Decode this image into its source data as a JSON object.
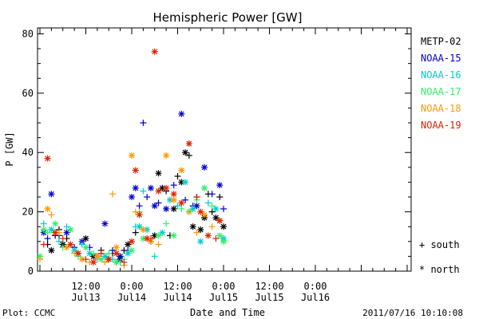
{
  "chart_data": {
    "type": "scatter",
    "title": "Hemispheric Power [GW]",
    "xlabel": "Date and Time",
    "ylabel": "P [GW]",
    "ylim": [
      0,
      82
    ],
    "xlim_hours": [
      0,
      96
    ],
    "x_ticks": [
      {
        "h": 12,
        "line1": "12:00",
        "line2": "Jul13"
      },
      {
        "h": 24,
        "line1": "0:00",
        "line2": "Jul14"
      },
      {
        "h": 36,
        "line1": "12:00",
        "line2": "Jul14"
      },
      {
        "h": 48,
        "line1": "0:00",
        "line2": "Jul15"
      },
      {
        "h": 60,
        "line1": "12:00",
        "line2": "Jul15"
      },
      {
        "h": 72,
        "line1": "0:00",
        "line2": "Jul16"
      }
    ],
    "y_ticks": [
      0,
      20,
      40,
      60,
      80
    ],
    "legend_placement": "right",
    "marker_legend": [
      {
        "symbol": "+",
        "label": "south"
      },
      {
        "symbol": "*",
        "label": "north"
      }
    ],
    "series": [
      {
        "name": "METP-02",
        "color": "#000000",
        "points": [
          [
            2,
            9,
            "+"
          ],
          [
            3,
            7,
            "*"
          ],
          [
            4,
            12,
            "+"
          ],
          [
            5,
            14,
            "+"
          ],
          [
            6,
            9,
            "*"
          ],
          [
            7,
            11,
            "+"
          ],
          [
            10,
            6,
            "+"
          ],
          [
            12,
            11,
            "*"
          ],
          [
            14,
            5,
            "*"
          ],
          [
            16,
            7,
            "+"
          ],
          [
            18,
            4,
            "*"
          ],
          [
            19,
            6,
            "+"
          ],
          [
            20,
            3,
            "+"
          ],
          [
            21,
            4,
            "*"
          ],
          [
            22,
            7,
            "+"
          ],
          [
            23,
            9,
            "*"
          ],
          [
            25,
            13,
            "+"
          ],
          [
            29,
            10,
            "+"
          ],
          [
            30,
            12,
            "*"
          ],
          [
            31,
            33,
            "*"
          ],
          [
            32,
            28,
            "*"
          ],
          [
            33,
            27,
            "+"
          ],
          [
            34,
            12,
            "+"
          ],
          [
            35,
            21,
            "*"
          ],
          [
            36,
            32,
            "+"
          ],
          [
            37,
            30,
            "*"
          ],
          [
            38,
            40,
            "*"
          ],
          [
            39,
            39,
            "+"
          ],
          [
            40,
            15,
            "*"
          ],
          [
            41,
            25,
            "+"
          ],
          [
            42,
            14,
            "*"
          ],
          [
            43,
            18,
            "*"
          ],
          [
            44,
            26,
            "+"
          ],
          [
            45,
            20,
            "+"
          ],
          [
            46,
            18,
            "*"
          ],
          [
            47,
            25,
            "+"
          ],
          [
            48,
            15,
            "*"
          ]
        ]
      },
      {
        "name": "NOAA-15",
        "color": "#0000cc",
        "points": [
          [
            1,
            13,
            "*"
          ],
          [
            2,
            11,
            "+"
          ],
          [
            3,
            26,
            "*"
          ],
          [
            5,
            12,
            "+"
          ],
          [
            7,
            13,
            "*"
          ],
          [
            9,
            8,
            "+"
          ],
          [
            11,
            10,
            "*"
          ],
          [
            13,
            8,
            "+"
          ],
          [
            15,
            5,
            "*"
          ],
          [
            17,
            16,
            "*"
          ],
          [
            19,
            7,
            "+"
          ],
          [
            21,
            5,
            "*"
          ],
          [
            23,
            7,
            "+"
          ],
          [
            24,
            25,
            "*"
          ],
          [
            25,
            28,
            "*"
          ],
          [
            26,
            22,
            "+"
          ],
          [
            27,
            50,
            "+"
          ],
          [
            28,
            25,
            "+"
          ],
          [
            29,
            28,
            "*"
          ],
          [
            30,
            22,
            "*"
          ],
          [
            31,
            23,
            "+"
          ],
          [
            33,
            21,
            "*"
          ],
          [
            35,
            29,
            "+"
          ],
          [
            37,
            53,
            "*"
          ],
          [
            38,
            24,
            "+"
          ],
          [
            40,
            22,
            "+"
          ],
          [
            41,
            22,
            "*"
          ],
          [
            43,
            35,
            "*"
          ],
          [
            45,
            26,
            "+"
          ],
          [
            47,
            29,
            "*"
          ],
          [
            48,
            21,
            "+"
          ]
        ]
      },
      {
        "name": "NOAA-16",
        "color": "#00cccc",
        "points": [
          [
            1,
            16,
            "+"
          ],
          [
            3,
            14,
            "*"
          ],
          [
            5,
            10,
            "+"
          ],
          [
            7,
            15,
            "+"
          ],
          [
            9,
            7,
            "*"
          ],
          [
            11,
            9,
            "+"
          ],
          [
            13,
            6,
            "*"
          ],
          [
            15,
            4,
            "+"
          ],
          [
            17,
            5,
            "*"
          ],
          [
            19,
            4,
            "+"
          ],
          [
            21,
            3,
            "+"
          ],
          [
            23,
            6,
            "*"
          ],
          [
            25,
            15,
            "+"
          ],
          [
            26,
            15,
            "*"
          ],
          [
            27,
            27,
            "+"
          ],
          [
            28,
            14,
            "*"
          ],
          [
            30,
            5,
            "+"
          ],
          [
            32,
            13,
            "*"
          ],
          [
            34,
            24,
            "*"
          ],
          [
            36,
            22,
            "+"
          ],
          [
            38,
            30,
            "*"
          ],
          [
            40,
            21,
            "*"
          ],
          [
            42,
            10,
            "*"
          ],
          [
            44,
            23,
            "+"
          ],
          [
            46,
            21,
            "*"
          ],
          [
            48,
            11,
            "*"
          ]
        ]
      },
      {
        "name": "NOAA-17",
        "color": "#33ee66",
        "points": [
          [
            0,
            5,
            "*"
          ],
          [
            1,
            14,
            "*"
          ],
          [
            2,
            13,
            "+"
          ],
          [
            4,
            16,
            "*"
          ],
          [
            6,
            8,
            "+"
          ],
          [
            8,
            14,
            "*"
          ],
          [
            10,
            5,
            "+"
          ],
          [
            12,
            8,
            "*"
          ],
          [
            14,
            6,
            "+"
          ],
          [
            16,
            4,
            "*"
          ],
          [
            18,
            6,
            "+"
          ],
          [
            20,
            3,
            "*"
          ],
          [
            22,
            4,
            "+"
          ],
          [
            24,
            7,
            "*"
          ],
          [
            26,
            20,
            "+"
          ],
          [
            27,
            11,
            "*"
          ],
          [
            29,
            10,
            "+"
          ],
          [
            31,
            12,
            "*"
          ],
          [
            33,
            16,
            "+"
          ],
          [
            35,
            12,
            "*"
          ],
          [
            37,
            21,
            "+"
          ],
          [
            39,
            20,
            "*"
          ],
          [
            41,
            24,
            "+"
          ],
          [
            43,
            28,
            "*"
          ],
          [
            45,
            22,
            "+"
          ],
          [
            47,
            12,
            "*"
          ],
          [
            48,
            10,
            "*"
          ]
        ]
      },
      {
        "name": "NOAA-18",
        "color": "#ff9900",
        "points": [
          [
            0,
            4,
            "+"
          ],
          [
            2,
            21,
            "*"
          ],
          [
            3,
            19,
            "+"
          ],
          [
            5,
            13,
            "+"
          ],
          [
            7,
            8,
            "*"
          ],
          [
            9,
            6,
            "+"
          ],
          [
            11,
            4,
            "*"
          ],
          [
            13,
            3,
            "+"
          ],
          [
            15,
            5,
            "*"
          ],
          [
            17,
            3,
            "+"
          ],
          [
            19,
            26,
            "+"
          ],
          [
            20,
            8,
            "*"
          ],
          [
            22,
            2,
            "+"
          ],
          [
            24,
            39,
            "*"
          ],
          [
            25,
            20,
            "+"
          ],
          [
            27,
            14,
            "*"
          ],
          [
            29,
            10,
            "*"
          ],
          [
            31,
            9,
            "+"
          ],
          [
            33,
            39,
            "*"
          ],
          [
            35,
            24,
            "*"
          ],
          [
            37,
            34,
            "*"
          ],
          [
            39,
            20,
            "+"
          ],
          [
            41,
            13,
            "+"
          ],
          [
            43,
            19,
            "*"
          ],
          [
            45,
            15,
            "+"
          ],
          [
            47,
            17,
            "*"
          ]
        ]
      },
      {
        "name": "NOAA-19",
        "color": "#dd2200",
        "points": [
          [
            1,
            9,
            "+"
          ],
          [
            2,
            38,
            "*"
          ],
          [
            4,
            13,
            "*"
          ],
          [
            6,
            11,
            "+"
          ],
          [
            8,
            9,
            "*"
          ],
          [
            10,
            6,
            "*"
          ],
          [
            12,
            4,
            "+"
          ],
          [
            14,
            3,
            "*"
          ],
          [
            16,
            6,
            "+"
          ],
          [
            18,
            4,
            "*"
          ],
          [
            20,
            6,
            "*"
          ],
          [
            22,
            3,
            "+"
          ],
          [
            24,
            10,
            "*"
          ],
          [
            25,
            34,
            "*"
          ],
          [
            26,
            19,
            "*"
          ],
          [
            28,
            11,
            "*"
          ],
          [
            29,
            11,
            "+"
          ],
          [
            30,
            74,
            "*"
          ],
          [
            31,
            27,
            "*"
          ],
          [
            33,
            28,
            "*"
          ],
          [
            35,
            26,
            "*"
          ],
          [
            37,
            23,
            "*"
          ],
          [
            39,
            43,
            "*"
          ],
          [
            41,
            25,
            "+"
          ],
          [
            42,
            20,
            "*"
          ],
          [
            44,
            12,
            "*"
          ],
          [
            46,
            11,
            "+"
          ],
          [
            47,
            17,
            "*"
          ]
        ]
      }
    ]
  },
  "footer": {
    "left": "Plot: CCMC",
    "timestamp": "2011/07/16 10:10:08"
  }
}
